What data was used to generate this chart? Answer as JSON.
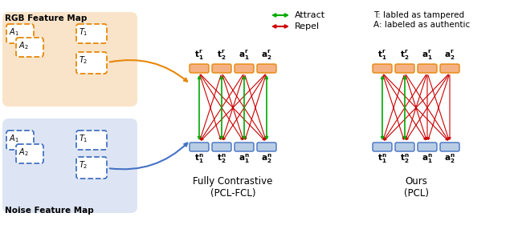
{
  "bg_color": "#ffffff",
  "orange_bg_color": "#f5cba7",
  "blue_bg_color": "#c5d9f0",
  "orange_dash_color": "#e8870a",
  "blue_dash_color": "#4472c4",
  "orange_feat_color": "#f4b183",
  "orange_feat_edge": "#e8870a",
  "blue_feat_color": "#b8cce4",
  "blue_feat_edge": "#4472c4",
  "green_arrow": "#00aa00",
  "red_arrow": "#cc0000",
  "orange_curve": "#e8870a",
  "blue_curve": "#4472c4",
  "rgb_label": "RGB Feature Map",
  "noise_label": "Noise Feature Map",
  "top_labels": [
    "$\\mathbf{t_1^r}$",
    "$\\mathbf{t_2^r}$",
    "$\\mathbf{a_1^r}$",
    "$\\mathbf{a_2^r}$"
  ],
  "bot_labels": [
    "$\\mathbf{t_1^n}$",
    "$\\mathbf{t_2^n}$",
    "$\\mathbf{a_1^n}$",
    "$\\mathbf{a_2^n}$"
  ],
  "fcl_title": "Fully Contrastive\n(PCL-FCL)",
  "pcl_title": "Ours\n(PCL)",
  "legend_attract": "Attract",
  "legend_repel": "Repel",
  "legend_T": "T: labled as tampered",
  "legend_A": "A: labeled as authentic",
  "figsize": [
    6.4,
    2.86
  ],
  "dpi": 100
}
